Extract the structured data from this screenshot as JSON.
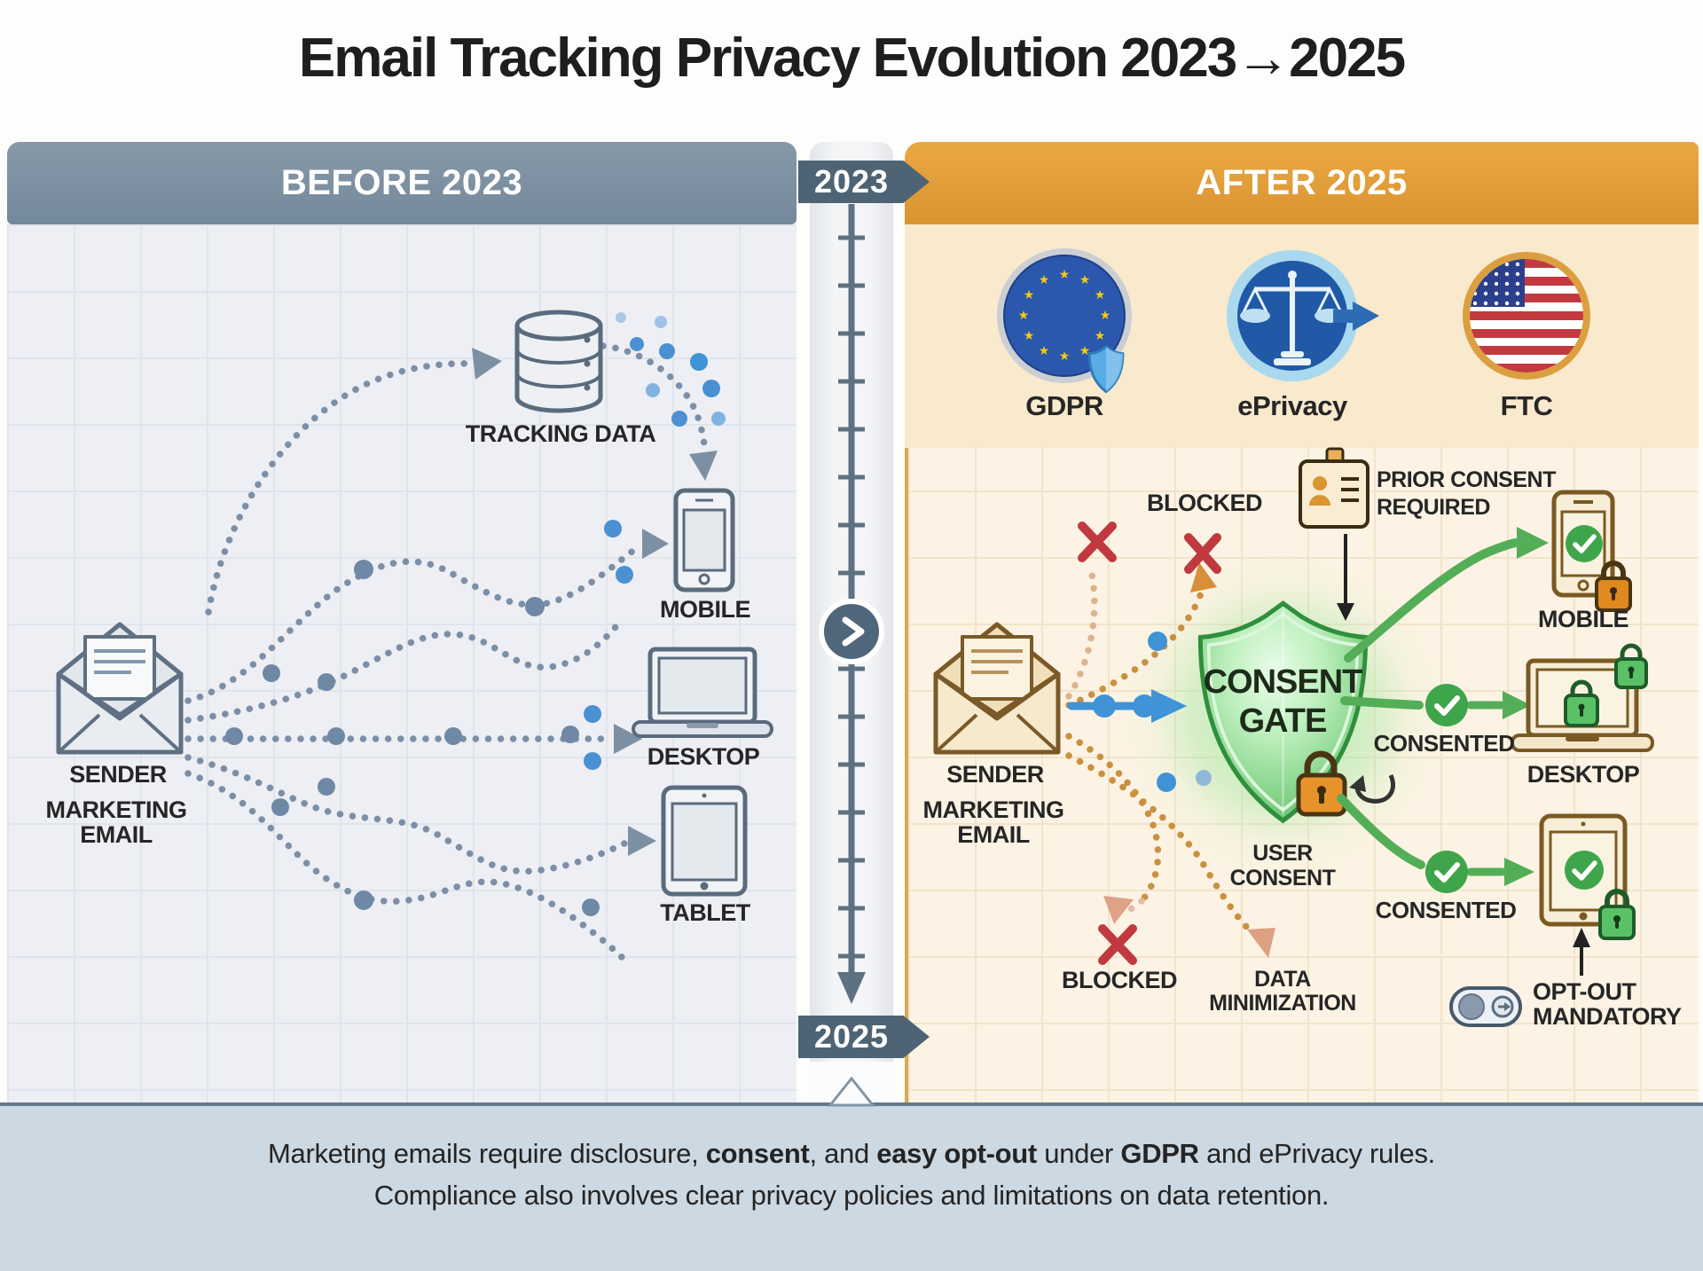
{
  "title": "Email Tracking Privacy Evolution 2023→2025",
  "timeline": {
    "start": "2023",
    "end": "2025"
  },
  "before": {
    "header": "BEFORE 2023",
    "sender_line1": "SENDER",
    "sender_line2": "MARKETING",
    "sender_line3": "EMAIL",
    "tracking": "TRACKING DATA",
    "device_mobile": "MOBILE",
    "device_desktop": "DESKTOP",
    "device_tablet": "TABLET"
  },
  "after": {
    "header": "AFTER 2025",
    "badge_gdpr": "GDPR",
    "badge_eprivacy": "ePrivacy",
    "badge_ftc": "FTC",
    "sender_line1": "SENDER",
    "sender_line2": "MARKETING",
    "sender_line3": "EMAIL",
    "gate_line1": "CONSENT",
    "gate_line2": "GATE",
    "blocked_top": "BLOCKED",
    "blocked_bottom": "BLOCKED",
    "prior_line1": "PRIOR CONSENT",
    "prior_line2": "REQUIRED",
    "user_line1": "USER",
    "user_line2": "CONSENT",
    "datamin_line1": "DATA",
    "datamin_line2": "MINIMIZATION",
    "consented_desktop": "CONSENTED",
    "consented_tablet": "CONSENTED",
    "optout_line1": "OPT-OUT",
    "optout_line2": "MANDATORY",
    "device_mobile": "MOBILE",
    "device_desktop": "DESKTOP"
  },
  "footer": {
    "line1_segments": [
      {
        "text": "Marketing emails require disclosure, ",
        "bold": false
      },
      {
        "text": "consent",
        "bold": true
      },
      {
        "text": ", and ",
        "bold": false
      },
      {
        "text": "easy opt-out",
        "bold": true
      },
      {
        "text": " under ",
        "bold": false
      },
      {
        "text": "GDPR",
        "bold": true
      },
      {
        "text": " and ePrivacy rules.",
        "bold": false
      }
    ],
    "line2": "Compliance also involves clear privacy policies and limitations on data retention."
  },
  "colors": {
    "before_header": "#74899b",
    "after_header": "#e29e39",
    "timeline_banner": "#4e6474",
    "footer_bg": "#ccd8e2",
    "green": "#4caf50",
    "orange_dots": "#c9913f",
    "blue_accent": "#3f93d6",
    "red_x": "#c0393f",
    "shield_green": "#3fa047",
    "gold_border": "#d9a959",
    "slate_dots": "#7c8fa6"
  }
}
